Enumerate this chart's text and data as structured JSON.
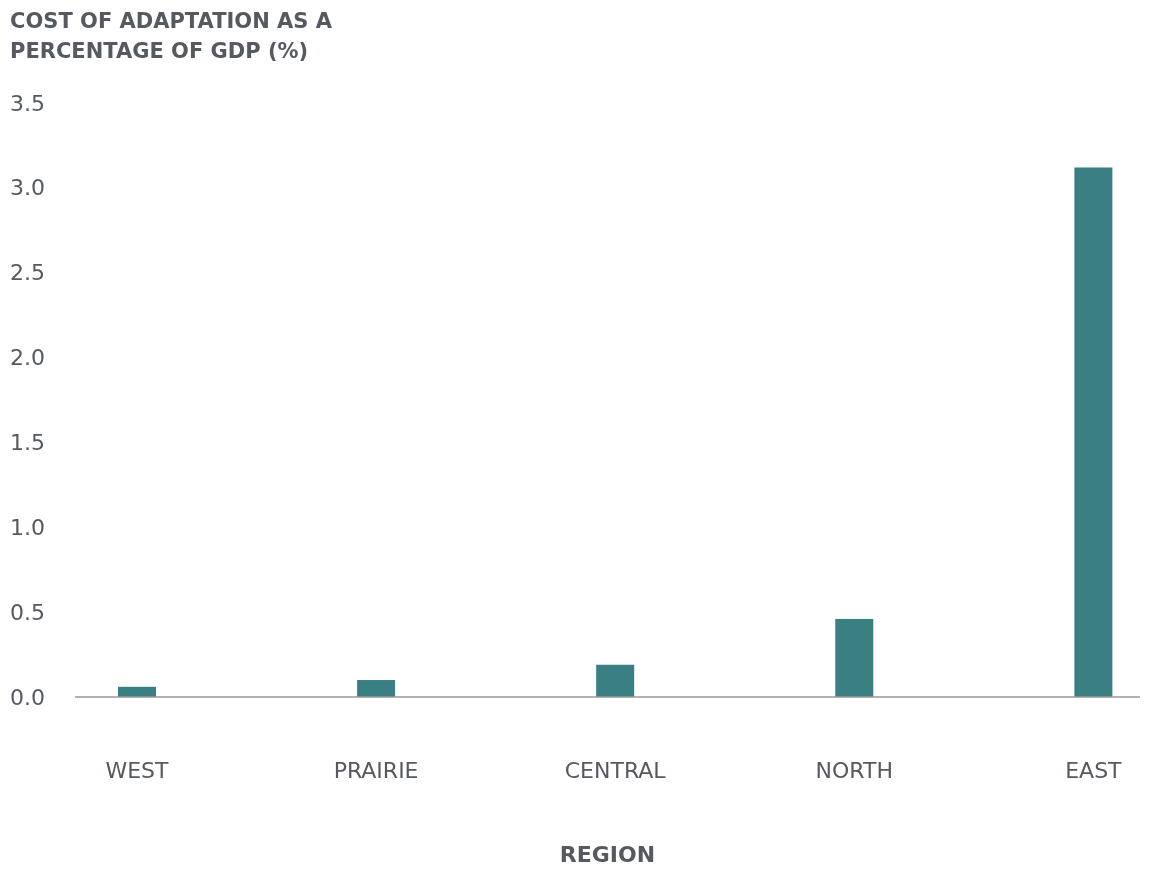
{
  "chart_data": {
    "type": "bar",
    "ylabel": "COST OF ADAPTATION AS A PERCENTAGE OF GDP (%)",
    "xlabel": "REGION",
    "categories": [
      "WEST",
      "PRAIRIE",
      "CENTRAL",
      "NORTH",
      "EAST"
    ],
    "values": [
      0.06,
      0.1,
      0.19,
      0.46,
      3.12
    ],
    "color": "#3a7f82",
    "ylim": [
      0,
      3.5
    ],
    "yticks": [
      {
        "value": 0,
        "label": "0.0"
      },
      {
        "value": 0.5,
        "label": "0.5"
      },
      {
        "value": 1,
        "label": "1.0"
      },
      {
        "value": 1.5,
        "label": "1.5"
      },
      {
        "value": 2,
        "label": "2.0"
      },
      {
        "value": 2.5,
        "label": "2.5"
      },
      {
        "value": 3,
        "label": "3.0"
      },
      {
        "value": 3.5,
        "label": "3.5"
      }
    ],
    "grid": false
  }
}
